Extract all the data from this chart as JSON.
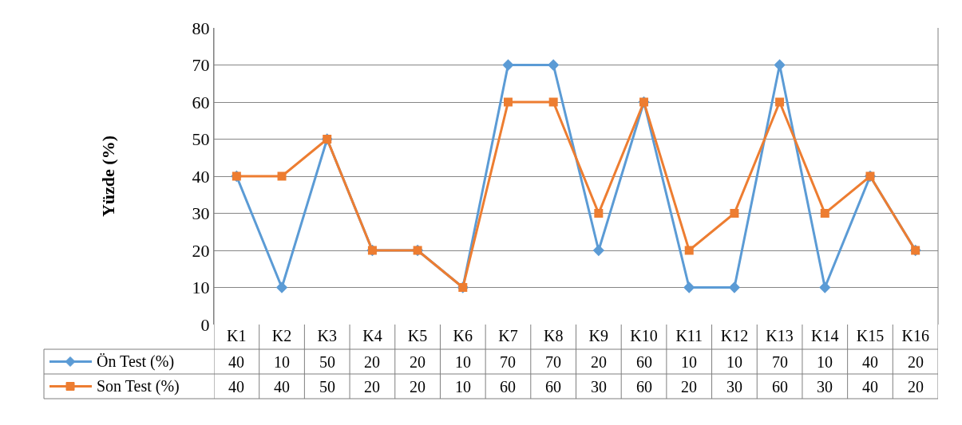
{
  "chart_data": {
    "type": "line",
    "ylabel": "Yüzde (%)",
    "categories": [
      "K1",
      "K2",
      "K3",
      "K4",
      "K5",
      "K6",
      "K7",
      "K8",
      "K9",
      "K10",
      "K11",
      "K12",
      "K13",
      "K14",
      "K15",
      "K16"
    ],
    "series": [
      {
        "name": "Ön Test (%)",
        "color": "#5b9bd5",
        "marker": "diamond",
        "values": [
          40,
          10,
          50,
          20,
          20,
          10,
          70,
          70,
          20,
          60,
          10,
          10,
          70,
          10,
          40,
          20
        ]
      },
      {
        "name": "Son Test (%)",
        "color": "#ed7d31",
        "marker": "square",
        "values": [
          40,
          40,
          50,
          20,
          20,
          10,
          60,
          60,
          30,
          60,
          20,
          30,
          60,
          30,
          40,
          20
        ]
      }
    ],
    "ylim": [
      0,
      80
    ],
    "yticks": [
      0,
      10,
      20,
      30,
      40,
      50,
      60,
      70,
      80
    ],
    "grid": "y",
    "legend": "bottom left",
    "data_labels": true,
    "line_style": "solid"
  }
}
